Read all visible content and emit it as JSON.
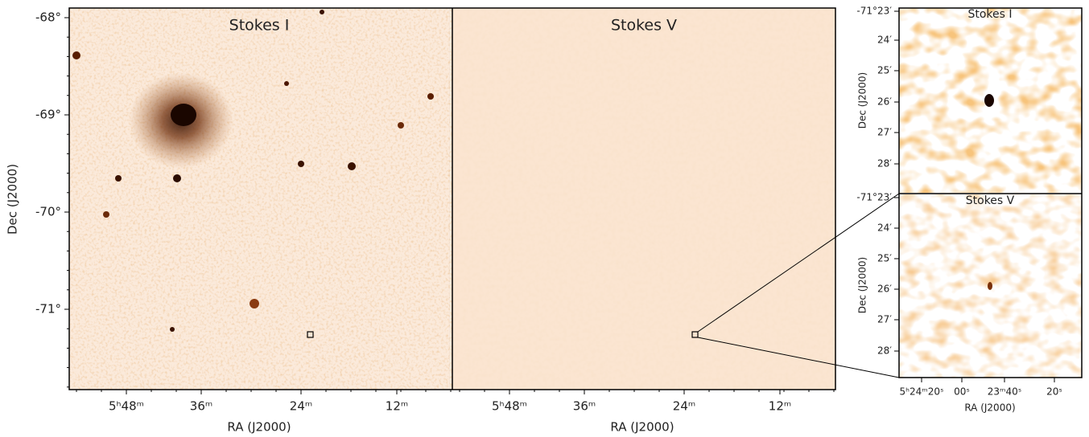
{
  "panels": [
    {
      "title": "Stokes I"
    },
    {
      "title": "Stokes V"
    }
  ],
  "main_axes": {
    "x_label": "RA (J2000)",
    "y_label": "Dec (J2000)",
    "x_ticks": [
      "5ʰ48ᵐ",
      "36ᵐ",
      "24ᵐ",
      "12ᵐ"
    ],
    "y_ticks": [
      "-68°",
      "-69°",
      "-70°",
      "-71°"
    ]
  },
  "insets": [
    {
      "title": "Stokes I",
      "y_label": "Dec (J2000)",
      "y_ticks": [
        "-71°23′",
        "24′",
        "25′",
        "26′",
        "27′",
        "28′"
      ]
    },
    {
      "title": "Stokes V",
      "y_label": "Dec (J2000)",
      "y_ticks": [
        "-71°23′",
        "24′",
        "25′",
        "26′",
        "27′",
        "28′"
      ]
    }
  ],
  "inset_axes": {
    "x_label": "RA (J2000)",
    "x_ticks": [
      "5ʰ24ᵐ20ˢ",
      "00ˢ",
      "23ᵐ40ˢ",
      "20ˢ"
    ]
  }
}
